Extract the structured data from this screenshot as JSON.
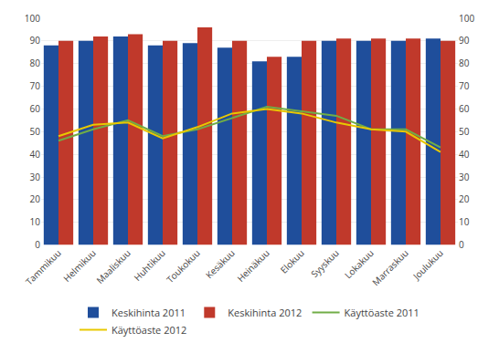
{
  "chart_data": {
    "type": "bar",
    "categories": [
      "Tammikuu",
      "Helmikuu",
      "Maaliskuu",
      "Huhtikuu",
      "Toukokuu",
      "Kesäkuu",
      "Heinäkuu",
      "Elokuu",
      "Syyskuu",
      "Lokakuu",
      "Marraskuu",
      "Joulukuu"
    ],
    "series": [
      {
        "name": "Keskihinta 2011",
        "type": "bar",
        "color": "#1F4E9B",
        "values": [
          88,
          90,
          92,
          88,
          89,
          87,
          81,
          83,
          90,
          90,
          90,
          91
        ]
      },
      {
        "name": "Keskihinta 2012",
        "type": "bar",
        "color": "#C0392B",
        "values": [
          90,
          92,
          93,
          90,
          96,
          90,
          83,
          90,
          91,
          91,
          91,
          90
        ]
      },
      {
        "name": "Käyttöaste 2011",
        "type": "line",
        "color": "#70AD47",
        "axis": "y2",
        "values": [
          46,
          51,
          55,
          48,
          51,
          56,
          61,
          59,
          57,
          51,
          51,
          43
        ]
      },
      {
        "name": "Käyttöaste 2012",
        "type": "line",
        "color": "#E8C800",
        "axis": "y2",
        "values": [
          48,
          53,
          54,
          47,
          52,
          58,
          60,
          58,
          54,
          51,
          50,
          41
        ]
      }
    ],
    "ylim": [
      0,
      100
    ],
    "yticks": [
      0,
      10,
      20,
      30,
      40,
      50,
      60,
      70,
      80,
      90,
      100
    ],
    "y2lim": [
      0,
      100
    ],
    "y2ticks": [
      0,
      10,
      20,
      30,
      40,
      50,
      60,
      70,
      80,
      90,
      100
    ],
    "grid": true,
    "legend": "bottom"
  }
}
